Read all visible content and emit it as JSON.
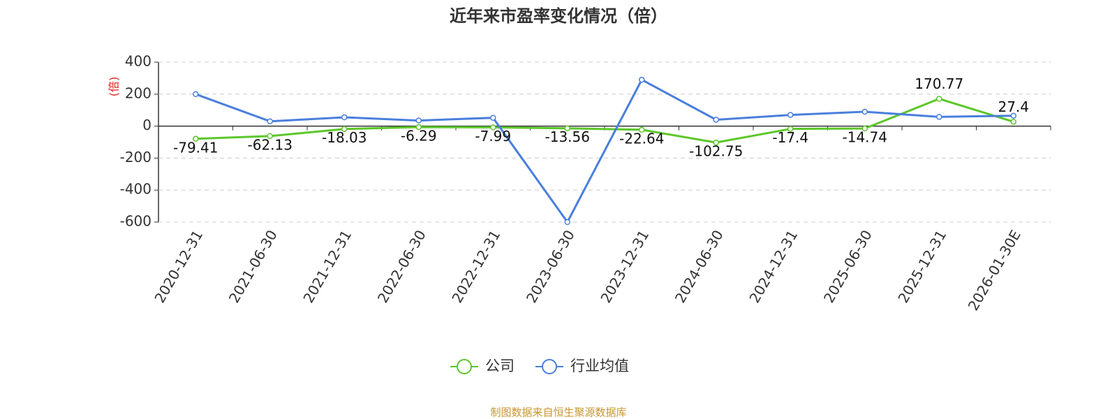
{
  "chart_data": {
    "type": "line",
    "title": "近年来市盈率变化情况（倍）",
    "y_label": "(倍)",
    "categories": [
      "2020-12-31",
      "2021-06-30",
      "2021-12-31",
      "2022-06-30",
      "2022-12-31",
      "2023-06-30",
      "2023-12-31",
      "2024-06-30",
      "2024-12-31",
      "2025-06-30",
      "2025-12-31",
      "2026-01-30E"
    ],
    "series": [
      {
        "name": "公司",
        "color": "#5cc72a",
        "values": [
          -79.41,
          -62.13,
          -18.03,
          -6.29,
          -7.99,
          -13.56,
          -22.64,
          -102.75,
          -17.4,
          -14.74,
          170.77,
          27.4
        ]
      },
      {
        "name": "行业均值",
        "color": "#4a7fdc",
        "values": [
          200,
          30,
          55,
          35,
          52,
          -600,
          290,
          40,
          70,
          90,
          58,
          65
        ]
      }
    ],
    "ylim": [
      -600,
      400
    ],
    "yticks": [
      -600,
      -400,
      -200,
      0,
      200,
      400
    ],
    "grid": true,
    "source": "制图数据来自恒生聚源数据库"
  }
}
